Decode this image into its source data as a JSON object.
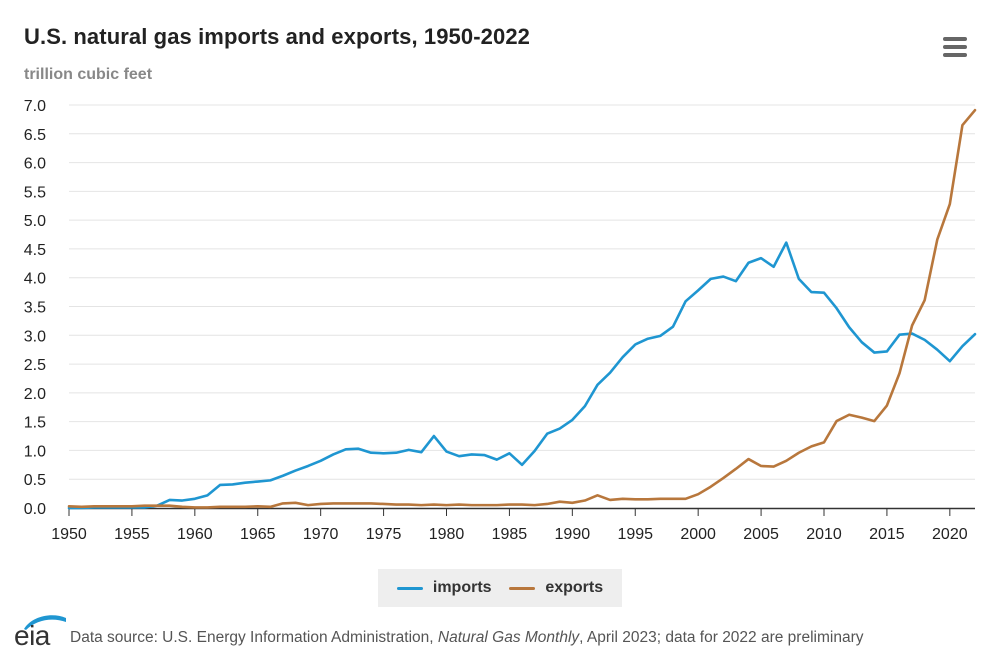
{
  "chart_data": {
    "type": "line",
    "title": "U.S. natural gas imports and exports, 1950-2022",
    "ylabel": "trillion cubic feet",
    "xlabel": "",
    "xlim": [
      1950,
      2022
    ],
    "ylim": [
      0,
      7
    ],
    "x_ticks": [
      "1950",
      "1955",
      "1960",
      "1965",
      "1970",
      "1975",
      "1980",
      "1985",
      "1990",
      "1995",
      "2000",
      "2005",
      "2010",
      "2015",
      "2020"
    ],
    "y_ticks": [
      "0.0",
      "0.5",
      "1.0",
      "1.5",
      "2.0",
      "2.5",
      "3.0",
      "3.5",
      "4.0",
      "4.5",
      "5.0",
      "5.5",
      "6.0",
      "6.5",
      "7.0"
    ],
    "grid": "horizontal",
    "legend_position": "bottom-center",
    "x": [
      1950,
      1951,
      1952,
      1953,
      1954,
      1955,
      1956,
      1957,
      1958,
      1959,
      1960,
      1961,
      1962,
      1963,
      1964,
      1965,
      1966,
      1967,
      1968,
      1969,
      1970,
      1971,
      1972,
      1973,
      1974,
      1975,
      1976,
      1977,
      1978,
      1979,
      1980,
      1981,
      1982,
      1983,
      1984,
      1985,
      1986,
      1987,
      1988,
      1989,
      1990,
      1991,
      1992,
      1993,
      1994,
      1995,
      1996,
      1997,
      1998,
      1999,
      2000,
      2001,
      2002,
      2003,
      2004,
      2005,
      2006,
      2007,
      2008,
      2009,
      2010,
      2011,
      2012,
      2013,
      2014,
      2015,
      2016,
      2017,
      2018,
      2019,
      2020,
      2021,
      2022
    ],
    "series": [
      {
        "name": "imports",
        "color": "#1f96d1",
        "values": [
          0.0,
          0.0,
          0.01,
          0.01,
          0.01,
          0.01,
          0.01,
          0.04,
          0.14,
          0.13,
          0.16,
          0.22,
          0.4,
          0.41,
          0.44,
          0.46,
          0.48,
          0.56,
          0.65,
          0.73,
          0.82,
          0.93,
          1.02,
          1.03,
          0.96,
          0.95,
          0.96,
          1.01,
          0.97,
          1.25,
          0.98,
          0.9,
          0.93,
          0.92,
          0.84,
          0.95,
          0.75,
          0.99,
          1.29,
          1.38,
          1.53,
          1.77,
          2.14,
          2.35,
          2.62,
          2.84,
          2.94,
          2.99,
          3.15,
          3.59,
          3.78,
          3.98,
          4.02,
          3.94,
          4.26,
          4.34,
          4.19,
          4.61,
          3.98,
          3.75,
          3.74,
          3.47,
          3.14,
          2.88,
          2.7,
          2.72,
          3.01,
          3.03,
          2.92,
          2.75,
          2.55,
          2.81,
          3.02
        ]
      },
      {
        "name": "exports",
        "color": "#b8773c",
        "values": [
          0.03,
          0.02,
          0.03,
          0.03,
          0.03,
          0.03,
          0.04,
          0.04,
          0.04,
          0.02,
          0.01,
          0.01,
          0.02,
          0.02,
          0.02,
          0.03,
          0.02,
          0.08,
          0.09,
          0.05,
          0.07,
          0.08,
          0.08,
          0.08,
          0.08,
          0.07,
          0.06,
          0.06,
          0.05,
          0.06,
          0.05,
          0.06,
          0.05,
          0.05,
          0.05,
          0.06,
          0.06,
          0.05,
          0.07,
          0.11,
          0.09,
          0.13,
          0.22,
          0.14,
          0.16,
          0.15,
          0.15,
          0.16,
          0.16,
          0.16,
          0.24,
          0.37,
          0.52,
          0.68,
          0.85,
          0.73,
          0.72,
          0.82,
          0.96,
          1.07,
          1.14,
          1.51,
          1.62,
          1.57,
          1.51,
          1.78,
          2.34,
          3.17,
          3.61,
          4.66,
          5.28,
          6.65,
          6.91
        ]
      }
    ]
  },
  "footer": {
    "logo_text": "eia",
    "source_prefix": "Data source: U.S. Energy Information Administration, ",
    "source_publication": "Natural Gas Monthly",
    "source_suffix": ", April 2023; data for 2022 are preliminary"
  },
  "menu": {
    "icon": "hamburger-menu-icon",
    "color": "#666666"
  }
}
